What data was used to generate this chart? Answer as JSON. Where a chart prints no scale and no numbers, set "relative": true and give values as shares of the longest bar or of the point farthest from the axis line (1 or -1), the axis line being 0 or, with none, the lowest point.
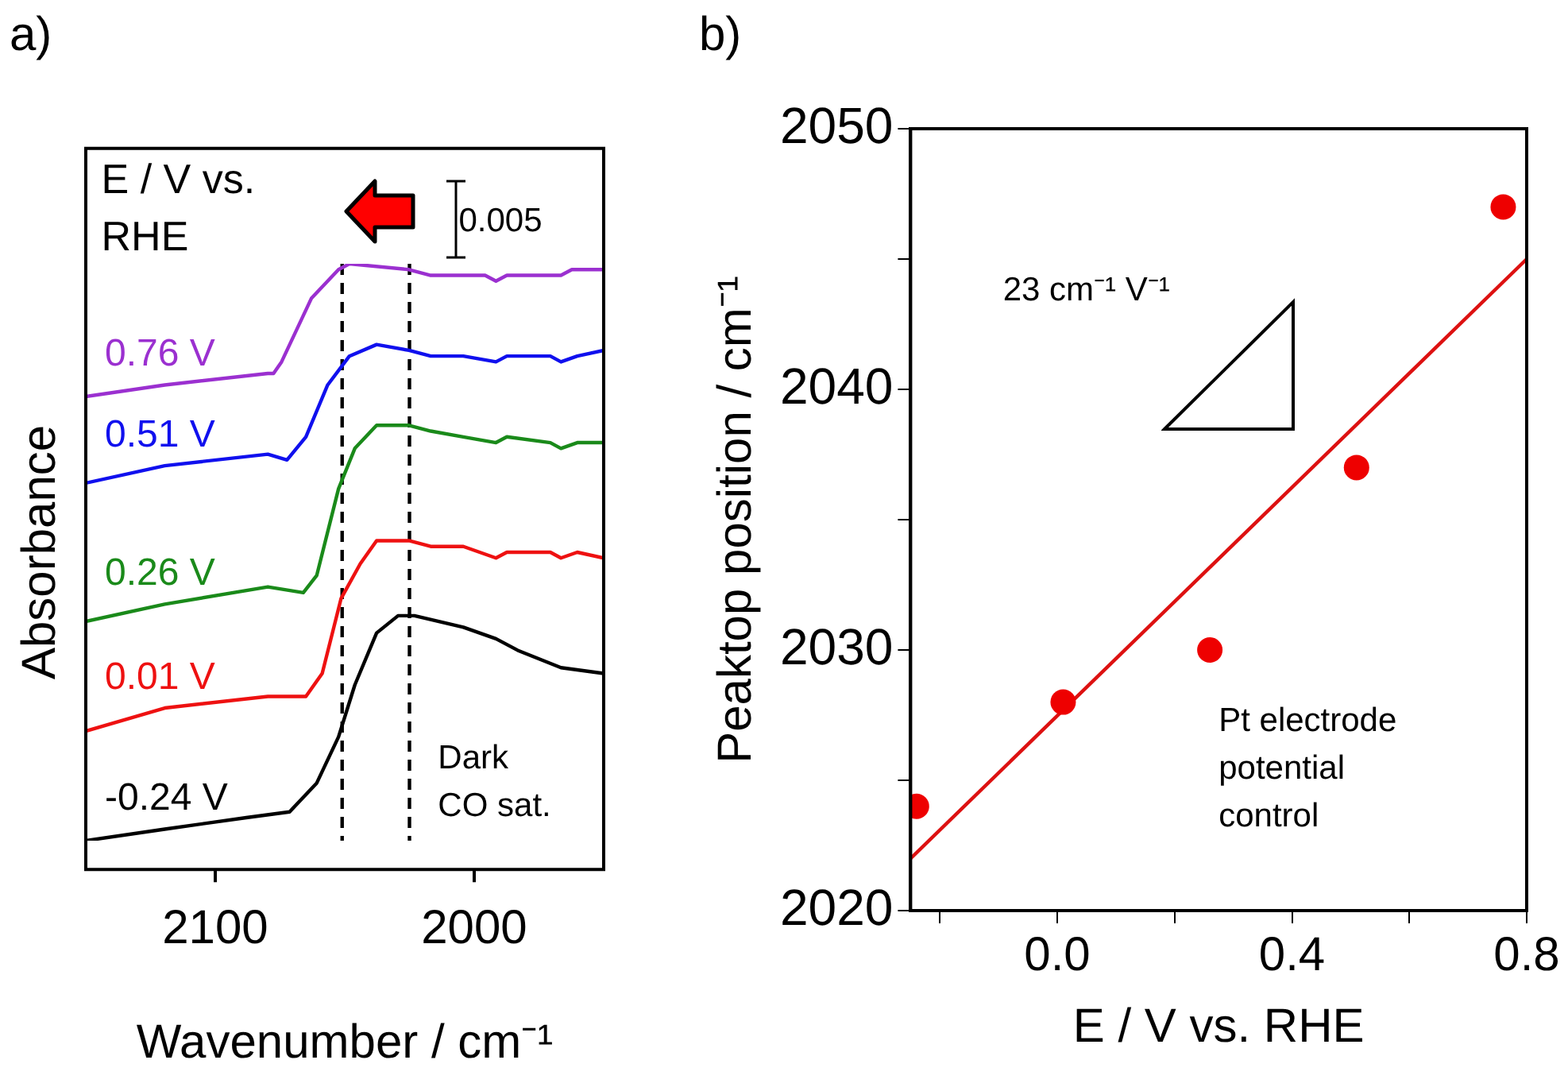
{
  "chart_data": [
    {
      "type": "line",
      "title": "a)",
      "xlabel": "Wavenumber / cm⁻¹",
      "ylabel": "Absorbance",
      "relative": true,
      "xlim": [
        2150,
        1950
      ],
      "xticks": [
        2100,
        2000
      ],
      "grid": false,
      "legend": false,
      "marker": "none",
      "ref_lines": [
        {
          "axis": "x",
          "value": 2051,
          "color": "#000000",
          "line_style": "dashed"
        },
        {
          "axis": "x",
          "value": 2025,
          "color": "#000000",
          "line_style": "dashed"
        }
      ],
      "annotations": [
        "E / V vs. RHE",
        "0.005",
        "Dark CO sat."
      ],
      "series": [
        {
          "name": "0.76 V",
          "color": "#9b30d0",
          "x": [
            2150,
            2119.5,
            2079.7,
            2077.5,
            2074.4,
            2062.9,
            2052.4,
            2048.2,
            2025.2,
            2016.8,
            2004.2,
            1995.8,
            1991.6,
            1987.4,
            1970.6,
            1966.5,
            1962.3,
            1950
          ],
          "values": [
            0.77,
            0.79,
            0.81,
            0.81,
            0.83,
            0.94,
            0.99,
            1.0,
            0.99,
            0.98,
            0.98,
            0.98,
            0.97,
            0.98,
            0.98,
            0.98,
            0.99,
            0.99
          ]
        },
        {
          "name": "0.51 V",
          "color": "#1010ee",
          "x": [
            2150,
            2119.5,
            2079.7,
            2072.3,
            2065,
            2056.6,
            2048.2,
            2037.7,
            2025.2,
            2016.8,
            2004.2,
            1991.6,
            1987.4,
            1970.6,
            1966.5,
            1960.2,
            1950
          ],
          "values": [
            0.62,
            0.65,
            0.67,
            0.66,
            0.7,
            0.79,
            0.84,
            0.86,
            0.85,
            0.84,
            0.84,
            0.83,
            0.84,
            0.84,
            0.83,
            0.84,
            0.85
          ]
        },
        {
          "name": "0.26 V",
          "color": "#1a8a1a",
          "x": [
            2150,
            2119.5,
            2079.7,
            2066,
            2060.8,
            2052.4,
            2046.1,
            2037.7,
            2025.2,
            2016.8,
            2004.2,
            1991.6,
            1987.4,
            1970.6,
            1966.5,
            1960.2,
            1950
          ],
          "values": [
            0.38,
            0.41,
            0.44,
            0.43,
            0.46,
            0.61,
            0.68,
            0.72,
            0.72,
            0.71,
            0.7,
            0.69,
            0.7,
            0.69,
            0.68,
            0.69,
            0.69
          ]
        },
        {
          "name": "0.01 V",
          "color": "#ee1111",
          "x": [
            2150,
            2119.5,
            2079.7,
            2065,
            2058.7,
            2051.4,
            2044,
            2037.7,
            2025.2,
            2016.8,
            2004.2,
            1991.6,
            1987.4,
            1970.6,
            1966.5,
            1960.2,
            1950
          ],
          "values": [
            0.19,
            0.23,
            0.25,
            0.25,
            0.29,
            0.42,
            0.48,
            0.52,
            0.52,
            0.51,
            0.51,
            0.49,
            0.5,
            0.5,
            0.49,
            0.5,
            0.49
          ]
        },
        {
          "name": "-0.24 V",
          "color": "#000000",
          "x": [
            2150,
            2119.5,
            2088,
            2071.3,
            2060.8,
            2052.4,
            2046.1,
            2037.7,
            2029.4,
            2023.1,
            2004.2,
            1991.6,
            1983.2,
            1966.5,
            1950
          ],
          "values": [
            0,
            0.02,
            0.04,
            0.05,
            0.1,
            0.18,
            0.27,
            0.36,
            0.39,
            0.39,
            0.37,
            0.35,
            0.33,
            0.3,
            0.29
          ]
        }
      ]
    },
    {
      "type": "scatter",
      "title": "b)",
      "xlabel": "E / V vs. RHE",
      "ylabel": "Peaktop position / cm⁻¹",
      "xlim": [
        -0.25,
        0.8
      ],
      "xticks": [
        {
          "value": -0.2,
          "label": null
        },
        {
          "value": 0,
          "label": "0.0"
        },
        {
          "value": 0.2,
          "label": null
        },
        0.4,
        {
          "value": 0.6,
          "label": null
        },
        0.8
      ],
      "ylim": [
        2020,
        2050
      ],
      "yticks": [
        2020,
        {
          "value": 2025,
          "label": null
        },
        2030,
        {
          "value": 2035,
          "label": null
        },
        2040,
        {
          "value": 2045,
          "label": null
        },
        2050
      ],
      "grid": false,
      "legend": false,
      "marker": "circle",
      "annotations": [
        "23 cm⁻¹ V⁻¹",
        "Pt electrode potential control"
      ],
      "series": [
        {
          "color": "#ee0000",
          "x": [
            -0.24,
            0.01,
            0.26,
            0.51,
            0.76
          ],
          "values": [
            2024,
            2028,
            2030,
            2037,
            2047
          ]
        },
        {
          "type": "line",
          "marker": "none",
          "color": "#dd1111",
          "x": [
            -0.25,
            0.8
          ],
          "values": [
            2022,
            2045
          ]
        }
      ]
    }
  ]
}
